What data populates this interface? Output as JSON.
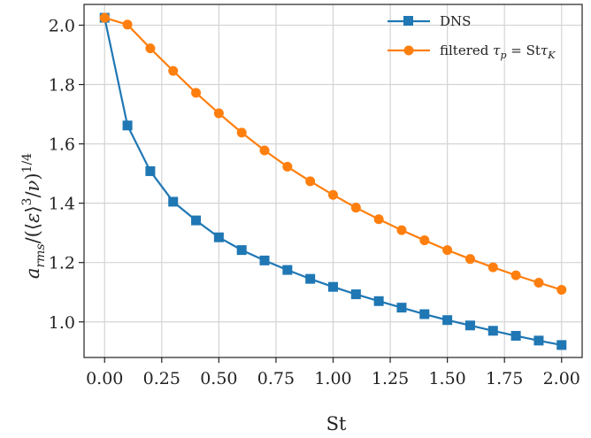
{
  "chart_data": {
    "type": "line",
    "xlabel": "St",
    "ylabel": "a_rms / (⟨ε⟩³/ν)^1/4",
    "xlim": [
      -0.09,
      2.09
    ],
    "ylim": [
      0.88,
      2.07
    ],
    "xticks": [
      "0.00",
      "0.25",
      "0.50",
      "0.75",
      "1.00",
      "1.25",
      "1.50",
      "1.75",
      "2.00"
    ],
    "yticks": [
      "1.0",
      "1.2",
      "1.4",
      "1.6",
      "1.8",
      "2.0"
    ],
    "grid": true,
    "legend_position": "top-right",
    "x": [
      0.0,
      0.1,
      0.2,
      0.3,
      0.4,
      0.5,
      0.6,
      0.7,
      0.8,
      0.9,
      1.0,
      1.1,
      1.2,
      1.3,
      1.4,
      1.5,
      1.6,
      1.7,
      1.8,
      1.9,
      2.0
    ],
    "series": [
      {
        "name": "DNS",
        "color": "#1f77b4",
        "marker": "square",
        "values": [
          2.025,
          1.662,
          1.508,
          1.405,
          1.342,
          1.285,
          1.242,
          1.207,
          1.175,
          1.145,
          1.118,
          1.093,
          1.07,
          1.048,
          1.026,
          1.006,
          0.988,
          0.97,
          0.953,
          0.937,
          0.922
        ]
      },
      {
        "name": "filtered τp = St τK",
        "color": "#ff7f0e",
        "marker": "circle",
        "values": [
          2.025,
          2.002,
          1.922,
          1.846,
          1.772,
          1.703,
          1.638,
          1.578,
          1.523,
          1.474,
          1.428,
          1.385,
          1.346,
          1.309,
          1.275,
          1.242,
          1.212,
          1.184,
          1.157,
          1.132,
          1.108
        ]
      }
    ]
  }
}
